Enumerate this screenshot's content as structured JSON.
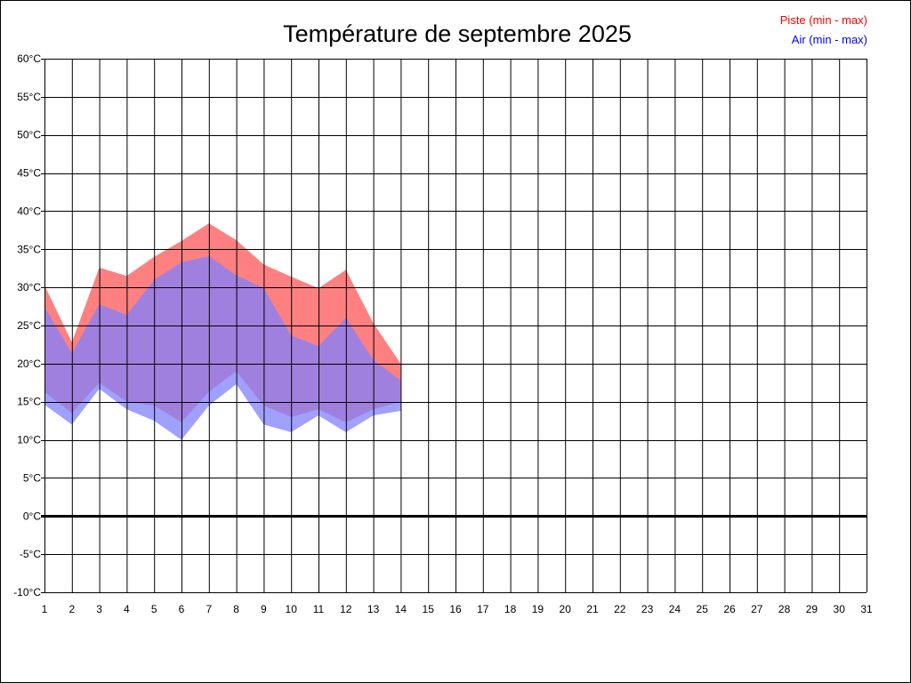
{
  "chart_data": {
    "type": "area",
    "title": "Température de septembre 2025",
    "xlim": [
      1,
      31
    ],
    "ylim": [
      -10,
      60
    ],
    "x_ticks": [
      "1",
      "2",
      "3",
      "4",
      "5",
      "6",
      "7",
      "8",
      "9",
      "10",
      "11",
      "12",
      "13",
      "14",
      "15",
      "16",
      "17",
      "18",
      "19",
      "20",
      "21",
      "22",
      "23",
      "24",
      "25",
      "26",
      "27",
      "28",
      "29",
      "30",
      "31"
    ],
    "y_ticks": [
      "60°C",
      "55°C",
      "50°C",
      "45°C",
      "40°C",
      "35°C",
      "30°C",
      "25°C",
      "20°C",
      "15°C",
      "10°C",
      "5°C",
      "0°C",
      "-5°C",
      "-10°C"
    ],
    "y_tick_values": [
      60,
      55,
      50,
      45,
      40,
      35,
      30,
      25,
      20,
      15,
      10,
      5,
      0,
      -5,
      -10
    ],
    "grid": true,
    "legend_position": "top-right",
    "zero_line": true,
    "series": [
      {
        "name": "Piste (min - max)",
        "color": "#ff0000",
        "fill": "#ff8080",
        "x": [
          1,
          2,
          3,
          4,
          5,
          6,
          7,
          8,
          9,
          10,
          11,
          12,
          13,
          14
        ],
        "min": [
          16.3,
          13.5,
          17.5,
          15.0,
          14.5,
          12.3,
          16.3,
          19.0,
          14.5,
          13.0,
          14.0,
          12.3,
          14.0,
          15.0
        ],
        "max": [
          30.3,
          22.8,
          32.6,
          31.5,
          34.0,
          36.1,
          38.4,
          36.2,
          33.0,
          31.4,
          29.9,
          32.3,
          25.3,
          20.0
        ]
      },
      {
        "name": "Air (min - max)",
        "color": "#0000ff",
        "fill": "#8080ff",
        "x": [
          1,
          2,
          3,
          4,
          5,
          6,
          7,
          8,
          9,
          10,
          11,
          12,
          13,
          14
        ],
        "min": [
          14.6,
          12.0,
          16.7,
          14.0,
          12.5,
          10.0,
          14.5,
          17.3,
          12.0,
          11.0,
          13.2,
          11.0,
          13.2,
          13.8
        ],
        "max": [
          27.4,
          21.4,
          27.8,
          26.4,
          31.0,
          33.3,
          34.1,
          31.6,
          29.9,
          23.7,
          22.3,
          26.0,
          20.5,
          17.8
        ]
      }
    ]
  }
}
